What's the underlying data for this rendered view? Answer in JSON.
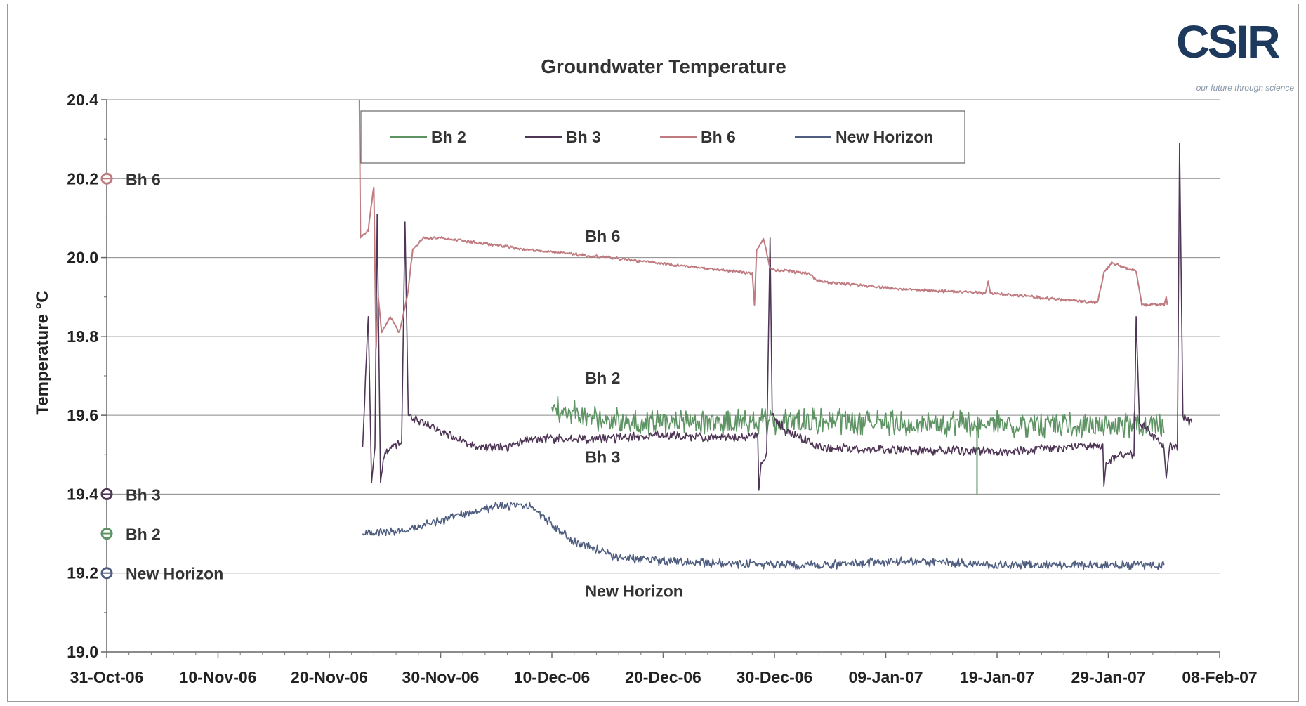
{
  "logo": {
    "wordmark": "CSIR",
    "tagline": "our future through science"
  },
  "colors": {
    "bh2": "#5e9464",
    "bh3": "#4f3656",
    "bh6": "#bf7b80",
    "new_horizon": "#4f5e80"
  },
  "chart_data": {
    "type": "line",
    "title": "Groundwater Temperature",
    "xlabel": "",
    "ylabel": "Temperature °C",
    "x_ticks": [
      "31-Oct-06",
      "10-Nov-06",
      "20-Nov-06",
      "30-Nov-06",
      "10-Dec-06",
      "20-Dec-06",
      "30-Dec-06",
      "09-Jan-07",
      "19-Jan-07",
      "29-Jan-07",
      "08-Feb-07"
    ],
    "xlim": [
      "2006-10-31",
      "2007-02-08"
    ],
    "ylim": [
      19.0,
      20.4
    ],
    "y_ticks": [
      "19.0",
      "19.2",
      "19.4",
      "19.6",
      "19.8",
      "20.0",
      "20.2",
      "20.4"
    ],
    "grid": "horizontal",
    "legend_position": "top",
    "series": [
      {
        "name": "Bh 2",
        "key": "bh2",
        "noise": 0.035,
        "noise_start": "2006-12-10",
        "points": [
          [
            "2006-12-10",
            19.62
          ],
          [
            "2006-12-15",
            19.585
          ],
          [
            "2006-12-25",
            19.58
          ],
          [
            "2007-01-05",
            19.585
          ],
          [
            "2007-01-15",
            19.58
          ],
          [
            "2007-01-25",
            19.575
          ],
          [
            "2007-02-03",
            19.575
          ]
        ]
      },
      {
        "name": "Bh 3",
        "key": "bh3",
        "noise": 0.012,
        "points": [
          [
            "2006-11-23",
            19.52
          ],
          [
            "2006-11-23.5",
            19.85
          ],
          [
            "2006-11-23.8",
            19.43
          ],
          [
            "2006-11-24.1",
            19.52
          ],
          [
            "2006-11-24.3",
            20.11
          ],
          [
            "2006-11-24.6",
            19.43
          ],
          [
            "2006-11-25",
            19.51
          ],
          [
            "2006-11-26.5",
            19.53
          ],
          [
            "2006-11-26.8",
            20.09
          ],
          [
            "2006-11-27.1",
            19.6
          ],
          [
            "2006-11-30",
            19.56
          ],
          [
            "2006-12-03",
            19.52
          ],
          [
            "2006-12-06",
            19.52
          ],
          [
            "2006-12-08",
            19.54
          ],
          [
            "2006-12-15",
            19.54
          ],
          [
            "2006-12-20",
            19.55
          ],
          [
            "2006-12-27",
            19.54
          ],
          [
            "2006-12-28.5",
            19.55
          ],
          [
            "2006-12-28.6",
            19.41
          ],
          [
            "2006-12-28.8",
            19.48
          ],
          [
            "2006-12-29.3",
            19.5
          ],
          [
            "2006-12-29.6",
            20.05
          ],
          [
            "2006-12-29.8",
            19.6
          ],
          [
            "2006-12-31",
            19.56
          ],
          [
            "2007-01-03",
            19.52
          ],
          [
            "2007-01-10",
            19.51
          ],
          [
            "2007-01-20",
            19.51
          ],
          [
            "2007-01-27",
            19.52
          ],
          [
            "2007-01-28.5",
            19.52
          ],
          [
            "2007-01-28.6",
            19.42
          ],
          [
            "2007-01-28.8",
            19.48
          ],
          [
            "2007-01-30",
            19.5
          ],
          [
            "2007-01-31.3",
            19.5
          ],
          [
            "2007-01-31.5",
            19.85
          ],
          [
            "2007-01-31.8",
            19.58
          ],
          [
            "2007-02-02",
            19.55
          ],
          [
            "2007-02-03",
            19.52
          ],
          [
            "2007-02-03.2",
            19.44
          ],
          [
            "2007-02-03.5",
            19.52
          ],
          [
            "2007-02-04.2",
            19.52
          ],
          [
            "2007-02-04.4",
            20.29
          ],
          [
            "2007-02-04.7",
            19.6
          ],
          [
            "2007-02-05.5",
            19.58
          ]
        ]
      },
      {
        "name": "Bh 6",
        "key": "bh6",
        "noise": 0.004,
        "points": [
          [
            "2006-11-22.7",
            20.4
          ],
          [
            "2006-11-22.8",
            20.05
          ],
          [
            "2006-11-23.5",
            20.07
          ],
          [
            "2006-11-24",
            20.18
          ],
          [
            "2006-11-24.2",
            19.77
          ],
          [
            "2006-11-24.4",
            19.9
          ],
          [
            "2006-11-24.7",
            19.81
          ],
          [
            "2006-11-25.5",
            19.85
          ],
          [
            "2006-11-26.3",
            19.81
          ],
          [
            "2006-11-27",
            19.9
          ],
          [
            "2006-11-27.5",
            20.02
          ],
          [
            "2006-11-28.5",
            20.05
          ],
          [
            "2006-11-30",
            20.05
          ],
          [
            "2006-12-08",
            20.02
          ],
          [
            "2006-12-15",
            20.0
          ],
          [
            "2006-12-28",
            19.96
          ],
          [
            "2006-12-28.2",
            19.88
          ],
          [
            "2006-12-28.4",
            20.02
          ],
          [
            "2006-12-29",
            20.05
          ],
          [
            "2006-12-29.6",
            19.97
          ],
          [
            "2007-01-02",
            19.96
          ],
          [
            "2007-01-03",
            19.94
          ],
          [
            "2007-01-10",
            19.92
          ],
          [
            "2007-01-18",
            19.91
          ],
          [
            "2007-01-18.2",
            19.94
          ],
          [
            "2007-01-18.4",
            19.91
          ],
          [
            "2007-01-28",
            19.885
          ],
          [
            "2007-01-28.6",
            19.96
          ],
          [
            "2007-01-29.3",
            19.985
          ],
          [
            "2007-01-31.5",
            19.965
          ],
          [
            "2007-02-01",
            19.88
          ],
          [
            "2007-02-03",
            19.88
          ],
          [
            "2007-02-03.2",
            19.9
          ],
          [
            "2007-02-03.3",
            19.88
          ]
        ]
      },
      {
        "name": "New Horizon",
        "key": "new_horizon",
        "noise": 0.012,
        "points": [
          [
            "2006-11-23",
            19.3
          ],
          [
            "2006-11-27",
            19.31
          ],
          [
            "2006-12-01",
            19.34
          ],
          [
            "2006-12-05",
            19.37
          ],
          [
            "2006-12-08",
            19.37
          ],
          [
            "2006-12-12",
            19.28
          ],
          [
            "2006-12-16",
            19.24
          ],
          [
            "2006-12-20",
            19.23
          ],
          [
            "2006-12-30",
            19.22
          ],
          [
            "2007-01-03",
            19.22
          ],
          [
            "2007-01-10",
            19.23
          ],
          [
            "2007-01-20",
            19.22
          ],
          [
            "2007-02-03",
            19.22
          ]
        ]
      }
    ],
    "line_labels": [
      {
        "key": "bh6",
        "text": "Bh 6",
        "x": "2006-12-13",
        "y": 20.04
      },
      {
        "key": "bh2",
        "text": "Bh 2",
        "x": "2006-12-13",
        "y": 19.68
      },
      {
        "key": "bh3",
        "text": "Bh 3",
        "x": "2006-12-13",
        "y": 19.48
      },
      {
        "key": "new_horizon",
        "text": "New Horizon",
        "x": "2006-12-13",
        "y": 19.14
      }
    ],
    "axis_markers": [
      {
        "key": "bh6",
        "text": "Bh 6",
        "y": 20.2
      },
      {
        "key": "bh3",
        "text": "Bh 3",
        "y": 19.4
      },
      {
        "key": "bh2",
        "text": "Bh 2",
        "y": 19.3
      },
      {
        "key": "new_horizon",
        "text": "New Horizon",
        "y": 19.2
      }
    ]
  }
}
